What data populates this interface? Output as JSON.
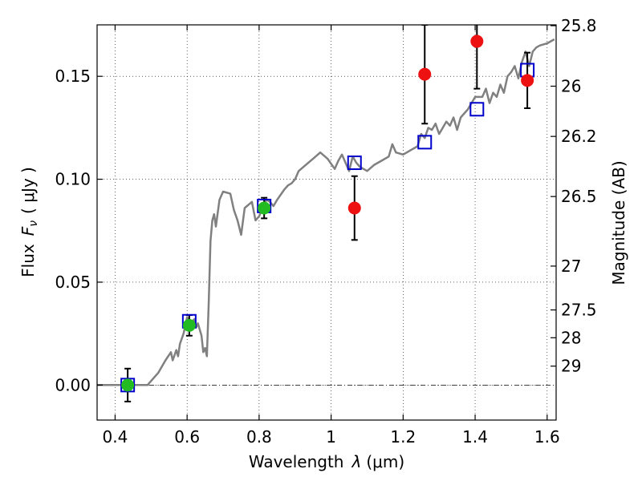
{
  "chart_data": {
    "type": "scatter",
    "xlabel_prefix": "Wavelength",
    "xlabel_symbol": "λ",
    "xlabel_unit": "(μm)",
    "ylabel_prefix": "Flux",
    "ylabel_symbol": "F",
    "ylabel_subscript": "ν",
    "ylabel_unit": "( μJy )",
    "y2label": "Magnitude (AB)",
    "xlim": [
      0.35,
      1.625
    ],
    "ylim": [
      -0.017,
      0.175
    ],
    "grid": true,
    "x_ticks": [
      0.4,
      0.6,
      0.8,
      1.0,
      1.2,
      1.4,
      1.6
    ],
    "x_tick_labels": [
      "0.4",
      "0.6",
      "0.8",
      "1",
      "1.2",
      "1.4",
      "1.6"
    ],
    "y_ticks": [
      0.0,
      0.05,
      0.1,
      0.15
    ],
    "y_tick_labels": [
      "0.00",
      "0.05",
      "0.10",
      "0.15"
    ],
    "y2_ticks": [
      {
        "label": "25.8",
        "flux": 0.1746
      },
      {
        "label": "26",
        "flux": 0.1452
      },
      {
        "label": "26.2",
        "flux": 0.1208
      },
      {
        "label": "26.5",
        "flux": 0.0916
      },
      {
        "label": "27",
        "flux": 0.0578
      },
      {
        "label": "27.5",
        "flux": 0.0365
      },
      {
        "label": "28",
        "flux": 0.023
      },
      {
        "label": "29",
        "flux": 0.0092
      }
    ],
    "colors": {
      "model": "#808080",
      "model_photometry": "#0000cc",
      "green_points": "#22bb22",
      "red_points": "#ee1111",
      "errorbar": "#000000"
    },
    "model_spectrum": {
      "x": [
        0.35,
        0.4,
        0.45,
        0.49,
        0.5,
        0.52,
        0.54,
        0.555,
        0.56,
        0.57,
        0.575,
        0.58,
        0.59,
        0.6,
        0.605,
        0.61,
        0.62,
        0.625,
        0.63,
        0.64,
        0.645,
        0.65,
        0.655,
        0.66,
        0.665,
        0.67,
        0.675,
        0.68,
        0.69,
        0.7,
        0.72,
        0.73,
        0.74,
        0.75,
        0.76,
        0.78,
        0.79,
        0.8,
        0.81,
        0.82,
        0.83,
        0.84,
        0.85,
        0.87,
        0.88,
        0.89,
        0.9,
        0.91,
        0.93,
        0.95,
        0.97,
        0.99,
        1.01,
        1.02,
        1.03,
        1.05,
        1.06,
        1.07,
        1.08,
        1.1,
        1.12,
        1.14,
        1.16,
        1.17,
        1.18,
        1.2,
        1.22,
        1.24,
        1.25,
        1.26,
        1.27,
        1.28,
        1.29,
        1.3,
        1.32,
        1.33,
        1.34,
        1.35,
        1.36,
        1.38,
        1.4,
        1.42,
        1.43,
        1.44,
        1.45,
        1.46,
        1.47,
        1.48,
        1.49,
        1.5,
        1.51,
        1.52,
        1.53,
        1.54,
        1.55,
        1.56,
        1.57,
        1.58,
        1.6,
        1.62
      ],
      "y": [
        0.0,
        0.0,
        0.0,
        0.0,
        0.002,
        0.006,
        0.012,
        0.016,
        0.012,
        0.017,
        0.014,
        0.02,
        0.025,
        0.033,
        0.031,
        0.03,
        0.032,
        0.028,
        0.03,
        0.024,
        0.016,
        0.018,
        0.014,
        0.04,
        0.07,
        0.08,
        0.083,
        0.077,
        0.09,
        0.094,
        0.093,
        0.085,
        0.08,
        0.073,
        0.086,
        0.089,
        0.08,
        0.082,
        0.086,
        0.09,
        0.089,
        0.087,
        0.09,
        0.095,
        0.097,
        0.098,
        0.1,
        0.104,
        0.107,
        0.11,
        0.113,
        0.11,
        0.105,
        0.109,
        0.112,
        0.104,
        0.111,
        0.108,
        0.106,
        0.104,
        0.107,
        0.109,
        0.111,
        0.117,
        0.113,
        0.112,
        0.114,
        0.116,
        0.122,
        0.12,
        0.125,
        0.124,
        0.127,
        0.122,
        0.128,
        0.126,
        0.13,
        0.124,
        0.13,
        0.134,
        0.14,
        0.14,
        0.144,
        0.137,
        0.142,
        0.14,
        0.146,
        0.142,
        0.15,
        0.152,
        0.155,
        0.149,
        0.157,
        0.162,
        0.155,
        0.162,
        0.164,
        0.165,
        0.166,
        0.168
      ]
    },
    "model_photometry": {
      "x": [
        0.435,
        0.606,
        0.814,
        1.065,
        1.26,
        1.405,
        1.545
      ],
      "y": [
        0.0,
        0.031,
        0.087,
        0.108,
        0.118,
        0.134,
        0.153
      ]
    },
    "green_points": {
      "x": [
        0.435,
        0.606,
        0.814
      ],
      "y": [
        0.0,
        0.029,
        0.086
      ],
      "yerr": [
        0.008,
        0.005,
        0.005
      ]
    },
    "red_points": {
      "x": [
        1.065,
        1.26,
        1.405,
        1.545
      ],
      "y": [
        0.086,
        0.151,
        0.167,
        0.148
      ],
      "yerr_low": [
        0.0155,
        0.024,
        0.023,
        0.0135
      ],
      "yerr_high": [
        0.0155,
        0.024,
        0.023,
        0.0135
      ]
    }
  }
}
